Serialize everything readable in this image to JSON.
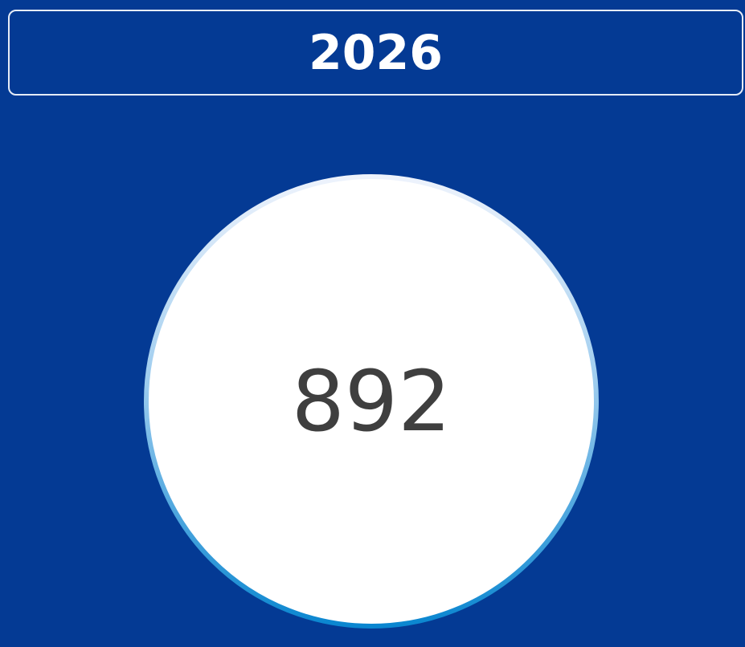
{
  "header": {
    "title": "2026"
  },
  "value": {
    "label": "892"
  }
}
